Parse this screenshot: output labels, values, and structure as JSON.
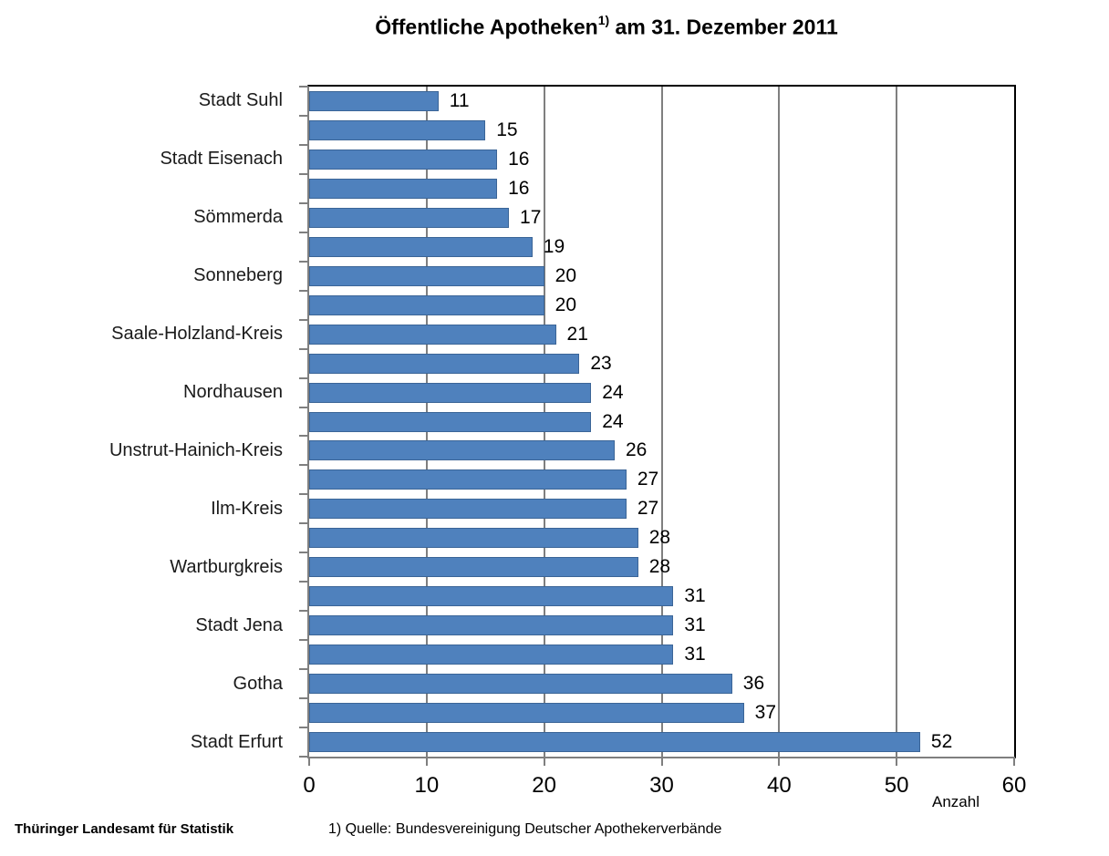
{
  "title": {
    "main": "Öffentliche Apotheken",
    "superscript": "1)",
    "suffix": " am 31. Dezember 2011"
  },
  "chart_data": {
    "type": "bar",
    "orientation": "horizontal",
    "categories": [
      "Stadt Suhl",
      "",
      "Stadt Eisenach",
      "",
      "Sömmerda",
      "",
      "Sonneberg",
      "",
      "Saale-Holzland-Kreis",
      "",
      "Nordhausen",
      "",
      "Unstrut-Hainich-Kreis",
      "",
      "Ilm-Kreis",
      "",
      "Wartburgkreis",
      "",
      "Stadt Jena",
      "",
      "Gotha",
      "",
      "Stadt Erfurt"
    ],
    "values": [
      11,
      15,
      16,
      16,
      17,
      19,
      20,
      20,
      21,
      23,
      24,
      24,
      26,
      27,
      27,
      28,
      28,
      31,
      31,
      31,
      36,
      37,
      52
    ],
    "category_label_interval": 2,
    "xlabel": "Anzahl",
    "xlim": [
      0,
      60
    ],
    "xticks": [
      0,
      10,
      20,
      30,
      40,
      50,
      60
    ],
    "grid": true,
    "legend": false,
    "colors": {
      "bar_fill": "#4F81BD",
      "bar_border": "#3B6597",
      "gridline": "#7F7F7F",
      "axis": "#7F7F7F",
      "plot_border": "#000000"
    }
  },
  "footer": {
    "left": "Thüringer Landesamt für Statistik",
    "source": "1) Quelle: Bundesvereinigung Deutscher Apothekerverbände"
  }
}
